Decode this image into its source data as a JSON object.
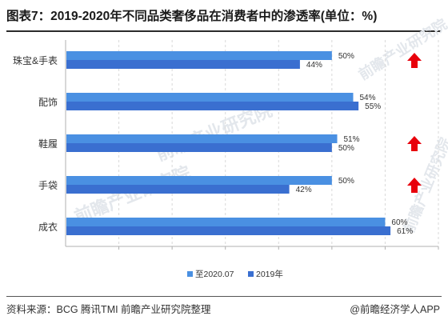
{
  "title": "图表7：2019-2020年不同品类奢侈品在消费者中的渗透率(单位：%)",
  "source": "资料来源：BCG 腾讯TMI 前瞻产业研究院整理",
  "attribution": "@前瞻经济学人APP",
  "watermark": "前瞻产业研究院",
  "colors": {
    "series_2020": "#4a90e2",
    "series_2019": "#3a6fd0",
    "up_arrow": "#e8000b",
    "axis": "#b0b0b0",
    "text": "#333333"
  },
  "chart_data": {
    "type": "bar",
    "orientation": "horizontal",
    "categories": [
      "珠宝&手表",
      "配饰",
      "鞋履",
      "手袋",
      "成衣"
    ],
    "series": [
      {
        "name": "至2020.07",
        "values": [
          50,
          54,
          51,
          50,
          60
        ]
      },
      {
        "name": "2019年",
        "values": [
          44,
          55,
          50,
          42,
          61
        ]
      }
    ],
    "value_labels": [
      [
        "50%",
        "54%",
        "51%",
        "50%",
        "60%"
      ],
      [
        "44%",
        "55%",
        "50%",
        "42%",
        "61%"
      ]
    ],
    "up_arrow_categories": [
      "珠宝&手表",
      "鞋履",
      "手袋"
    ],
    "xlim": [
      0,
      70
    ],
    "grid": "vertical dashed",
    "legend": "bottom-center"
  }
}
